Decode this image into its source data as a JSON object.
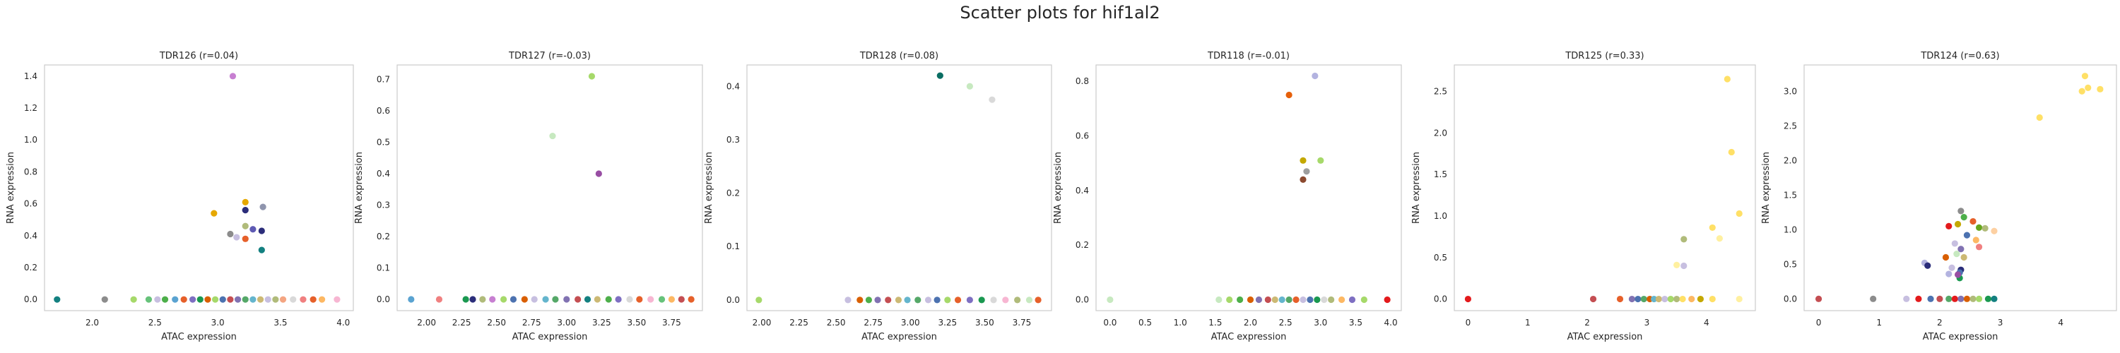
{
  "figure": {
    "suptitle": "Scatter plots for hif1al2"
  },
  "chart_data": [
    {
      "type": "scatter",
      "title": "TDR126 (r=0.04)",
      "xlabel": "ATAC expression",
      "ylabel": "RNA expression",
      "xlim": [
        1.62,
        4.08
      ],
      "ylim": [
        -0.07,
        1.47
      ],
      "xticks": [
        "2.0",
        "2.5",
        "3.0",
        "3.5",
        "4.0"
      ],
      "yticks": [
        "0.0",
        "0.2",
        "0.4",
        "0.6",
        "0.8",
        "1.0",
        "1.2",
        "1.4"
      ],
      "grid": false,
      "points": [
        {
          "x": 3.12,
          "y": 1.4,
          "c": "#c77fd1"
        },
        {
          "x": 3.22,
          "y": 0.61,
          "c": "#e6a800"
        },
        {
          "x": 3.36,
          "y": 0.58,
          "c": "#8f95ad"
        },
        {
          "x": 2.97,
          "y": 0.54,
          "c": "#e6a800"
        },
        {
          "x": 3.22,
          "y": 0.56,
          "c": "#2b2d7a"
        },
        {
          "x": 3.22,
          "y": 0.46,
          "c": "#b0bb7a"
        },
        {
          "x": 3.28,
          "y": 0.44,
          "c": "#5e5ab3"
        },
        {
          "x": 3.35,
          "y": 0.43,
          "c": "#2b2d7a"
        },
        {
          "x": 3.1,
          "y": 0.41,
          "c": "#8c8c8c"
        },
        {
          "x": 3.15,
          "y": 0.39,
          "c": "#c7bfe0"
        },
        {
          "x": 3.22,
          "y": 0.38,
          "c": "#e6602a"
        },
        {
          "x": 3.35,
          "y": 0.31,
          "c": "#138080"
        },
        {
          "x": 1.72,
          "y": 0.0,
          "c": "#138080"
        },
        {
          "x": 2.1,
          "y": 0.0,
          "c": "#8c8c8c"
        },
        {
          "x": 2.33,
          "y": 0.0,
          "c": "#a6d96a"
        },
        {
          "x": 2.45,
          "y": 0.0,
          "c": "#66c27a"
        },
        {
          "x": 2.52,
          "y": 0.0,
          "c": "#c7bfe0"
        },
        {
          "x": 2.58,
          "y": 0.0,
          "c": "#4daf4a"
        },
        {
          "x": 2.66,
          "y": 0.0,
          "c": "#5aa3d1"
        },
        {
          "x": 2.73,
          "y": 0.0,
          "c": "#e6602a"
        },
        {
          "x": 2.8,
          "y": 0.0,
          "c": "#7e6fc2"
        },
        {
          "x": 2.86,
          "y": 0.0,
          "c": "#1a9850"
        },
        {
          "x": 2.92,
          "y": 0.0,
          "c": "#d95f02"
        },
        {
          "x": 2.98,
          "y": 0.0,
          "c": "#a6d96a"
        },
        {
          "x": 3.04,
          "y": 0.0,
          "c": "#4c72b0"
        },
        {
          "x": 3.1,
          "y": 0.0,
          "c": "#c44e52"
        },
        {
          "x": 3.16,
          "y": 0.0,
          "c": "#8172b2"
        },
        {
          "x": 3.22,
          "y": 0.0,
          "c": "#55a868"
        },
        {
          "x": 3.28,
          "y": 0.0,
          "c": "#64b5cd"
        },
        {
          "x": 3.34,
          "y": 0.0,
          "c": "#ccb974"
        },
        {
          "x": 3.4,
          "y": 0.0,
          "c": "#c7bfe0"
        },
        {
          "x": 3.46,
          "y": 0.0,
          "c": "#b0bb7a"
        },
        {
          "x": 3.52,
          "y": 0.0,
          "c": "#f4a582"
        },
        {
          "x": 3.6,
          "y": 0.0,
          "c": "#d9d9d9"
        },
        {
          "x": 3.68,
          "y": 0.0,
          "c": "#f08080"
        },
        {
          "x": 3.76,
          "y": 0.0,
          "c": "#e6602a"
        },
        {
          "x": 3.83,
          "y": 0.0,
          "c": "#fdb863"
        },
        {
          "x": 3.95,
          "y": 0.0,
          "c": "#f7b6d2"
        }
      ]
    },
    {
      "type": "scatter",
      "title": "TDR127 (r=-0.03)",
      "xlabel": "ATAC expression",
      "ylabel": "RNA expression",
      "xlim": [
        1.79,
        3.97
      ],
      "ylim": [
        -0.036,
        0.746
      ],
      "xticks": [
        "2.00",
        "2.25",
        "2.50",
        "2.75",
        "3.00",
        "3.25",
        "3.50",
        "3.75"
      ],
      "yticks": [
        "0.0",
        "0.1",
        "0.2",
        "0.3",
        "0.4",
        "0.5",
        "0.6",
        "0.7"
      ],
      "grid": false,
      "points": [
        {
          "x": 3.18,
          "y": 0.71,
          "c": "#a6d96a"
        },
        {
          "x": 2.9,
          "y": 0.52,
          "c": "#c7e9c0"
        },
        {
          "x": 3.23,
          "y": 0.4,
          "c": "#984ea3"
        },
        {
          "x": 1.89,
          "y": 0.0,
          "c": "#5aa3d1"
        },
        {
          "x": 2.09,
          "y": 0.0,
          "c": "#f08080"
        },
        {
          "x": 2.28,
          "y": 0.0,
          "c": "#1a9850"
        },
        {
          "x": 2.33,
          "y": 0.0,
          "c": "#2b2d7a"
        },
        {
          "x": 2.4,
          "y": 0.0,
          "c": "#b0bb7a"
        },
        {
          "x": 2.47,
          "y": 0.0,
          "c": "#c77fd1"
        },
        {
          "x": 2.55,
          "y": 0.0,
          "c": "#a6d96a"
        },
        {
          "x": 2.62,
          "y": 0.0,
          "c": "#4c72b0"
        },
        {
          "x": 2.7,
          "y": 0.0,
          "c": "#d95f02"
        },
        {
          "x": 2.77,
          "y": 0.0,
          "c": "#c7bfe0"
        },
        {
          "x": 2.85,
          "y": 0.0,
          "c": "#64b5cd"
        },
        {
          "x": 2.92,
          "y": 0.0,
          "c": "#55a868"
        },
        {
          "x": 3.0,
          "y": 0.0,
          "c": "#8172b2"
        },
        {
          "x": 3.08,
          "y": 0.0,
          "c": "#c44e52"
        },
        {
          "x": 3.15,
          "y": 0.0,
          "c": "#138080"
        },
        {
          "x": 3.22,
          "y": 0.0,
          "c": "#ccb974"
        },
        {
          "x": 3.3,
          "y": 0.0,
          "c": "#4daf4a"
        },
        {
          "x": 3.37,
          "y": 0.0,
          "c": "#7e6fc2"
        },
        {
          "x": 3.45,
          "y": 0.0,
          "c": "#d9d9d9"
        },
        {
          "x": 3.52,
          "y": 0.0,
          "c": "#e6602a"
        },
        {
          "x": 3.6,
          "y": 0.0,
          "c": "#f7b6d2"
        },
        {
          "x": 3.68,
          "y": 0.0,
          "c": "#66c27a"
        },
        {
          "x": 3.75,
          "y": 0.0,
          "c": "#fdb863"
        },
        {
          "x": 3.82,
          "y": 0.0,
          "c": "#c44e52"
        },
        {
          "x": 3.89,
          "y": 0.0,
          "c": "#e6602a"
        }
      ]
    },
    {
      "type": "scatter",
      "title": "TDR128 (r=0.08)",
      "xlabel": "ATAC expression",
      "ylabel": "RNA expression",
      "xlim": [
        1.9,
        3.95
      ],
      "ylim": [
        -0.02,
        0.44
      ],
      "xticks": [
        "2.00",
        "2.25",
        "2.50",
        "2.75",
        "3.00",
        "3.25",
        "3.50",
        "3.75"
      ],
      "yticks": [
        "0.0",
        "0.1",
        "0.2",
        "0.3",
        "0.4"
      ],
      "grid": false,
      "points": [
        {
          "x": 3.2,
          "y": 0.42,
          "c": "#0b6e63"
        },
        {
          "x": 3.4,
          "y": 0.4,
          "c": "#c7e9c0"
        },
        {
          "x": 3.55,
          "y": 0.375,
          "c": "#d9d9d9"
        },
        {
          "x": 1.98,
          "y": 0.0,
          "c": "#a6d96a"
        },
        {
          "x": 2.58,
          "y": 0.0,
          "c": "#c7bfe0"
        },
        {
          "x": 2.66,
          "y": 0.0,
          "c": "#d95f02"
        },
        {
          "x": 2.72,
          "y": 0.0,
          "c": "#4daf4a"
        },
        {
          "x": 2.78,
          "y": 0.0,
          "c": "#8172b2"
        },
        {
          "x": 2.85,
          "y": 0.0,
          "c": "#c44e52"
        },
        {
          "x": 2.92,
          "y": 0.0,
          "c": "#ccb974"
        },
        {
          "x": 2.98,
          "y": 0.0,
          "c": "#64b5cd"
        },
        {
          "x": 3.05,
          "y": 0.0,
          "c": "#55a868"
        },
        {
          "x": 3.12,
          "y": 0.0,
          "c": "#c7bfe0"
        },
        {
          "x": 3.18,
          "y": 0.0,
          "c": "#4c72b0"
        },
        {
          "x": 3.25,
          "y": 0.0,
          "c": "#a6d96a"
        },
        {
          "x": 3.32,
          "y": 0.0,
          "c": "#e6602a"
        },
        {
          "x": 3.4,
          "y": 0.0,
          "c": "#7e6fc2"
        },
        {
          "x": 3.48,
          "y": 0.0,
          "c": "#1a9850"
        },
        {
          "x": 3.56,
          "y": 0.0,
          "c": "#d9d9d9"
        },
        {
          "x": 3.64,
          "y": 0.0,
          "c": "#f7b6d2"
        },
        {
          "x": 3.72,
          "y": 0.0,
          "c": "#b0bb7a"
        },
        {
          "x": 3.8,
          "y": 0.0,
          "c": "#c7e9c0"
        },
        {
          "x": 3.86,
          "y": 0.0,
          "c": "#e6602a"
        }
      ]
    },
    {
      "type": "scatter",
      "title": "TDR118 (r=-0.01)",
      "xlabel": "ATAC expression",
      "ylabel": "RNA expression",
      "xlim": [
        -0.2,
        4.15
      ],
      "ylim": [
        -0.04,
        0.86
      ],
      "xticks": [
        "0.0",
        "0.5",
        "1.0",
        "1.5",
        "2.0",
        "2.5",
        "3.0",
        "3.5",
        "4.0"
      ],
      "yticks": [
        "0.0",
        "0.2",
        "0.4",
        "0.6",
        "0.8"
      ],
      "grid": false,
      "points": [
        {
          "x": 2.92,
          "y": 0.82,
          "c": "#b3b3e0"
        },
        {
          "x": 2.55,
          "y": 0.75,
          "c": "#e6600a"
        },
        {
          "x": 2.75,
          "y": 0.51,
          "c": "#c4a800"
        },
        {
          "x": 3.0,
          "y": 0.51,
          "c": "#a6d96a"
        },
        {
          "x": 2.8,
          "y": 0.47,
          "c": "#9e9e9e"
        },
        {
          "x": 2.75,
          "y": 0.44,
          "c": "#8c4a2f"
        },
        {
          "x": 0.0,
          "y": 0.0,
          "c": "#c7e9c0"
        },
        {
          "x": 1.55,
          "y": 0.0,
          "c": "#c7e9c0"
        },
        {
          "x": 1.7,
          "y": 0.0,
          "c": "#a6d96a"
        },
        {
          "x": 1.85,
          "y": 0.0,
          "c": "#4daf4a"
        },
        {
          "x": 2.0,
          "y": 0.0,
          "c": "#d95f02"
        },
        {
          "x": 2.12,
          "y": 0.0,
          "c": "#8172b2"
        },
        {
          "x": 2.25,
          "y": 0.0,
          "c": "#c44e52"
        },
        {
          "x": 2.35,
          "y": 0.0,
          "c": "#ccb974"
        },
        {
          "x": 2.45,
          "y": 0.0,
          "c": "#64b5cd"
        },
        {
          "x": 2.55,
          "y": 0.0,
          "c": "#55a868"
        },
        {
          "x": 2.65,
          "y": 0.0,
          "c": "#e6602a"
        },
        {
          "x": 2.75,
          "y": 0.0,
          "c": "#c7bfe0"
        },
        {
          "x": 2.85,
          "y": 0.0,
          "c": "#4c72b0"
        },
        {
          "x": 2.95,
          "y": 0.0,
          "c": "#1a9850"
        },
        {
          "x": 3.05,
          "y": 0.0,
          "c": "#d9d9d9"
        },
        {
          "x": 3.15,
          "y": 0.0,
          "c": "#b0bb7a"
        },
        {
          "x": 3.3,
          "y": 0.0,
          "c": "#fdb863"
        },
        {
          "x": 3.45,
          "y": 0.0,
          "c": "#7e6fc2"
        },
        {
          "x": 3.62,
          "y": 0.0,
          "c": "#a6d96a"
        },
        {
          "x": 3.95,
          "y": 0.0,
          "c": "#e31a1c"
        }
      ]
    },
    {
      "type": "scatter",
      "title": "TDR125 (r=0.33)",
      "xlabel": "ATAC expression",
      "ylabel": "RNA expression",
      "xlim": [
        -0.23,
        4.82
      ],
      "ylim": [
        -0.14,
        2.82
      ],
      "xticks": [
        "0",
        "1",
        "2",
        "3",
        "4"
      ],
      "yticks": [
        "0.0",
        "0.5",
        "1.0",
        "1.5",
        "2.0",
        "2.5"
      ],
      "grid": false,
      "points": [
        {
          "x": 4.35,
          "y": 2.65,
          "c": "#ffe066"
        },
        {
          "x": 4.42,
          "y": 1.77,
          "c": "#ffe066"
        },
        {
          "x": 4.55,
          "y": 1.03,
          "c": "#ffe066"
        },
        {
          "x": 4.1,
          "y": 0.86,
          "c": "#ffe066"
        },
        {
          "x": 4.22,
          "y": 0.73,
          "c": "#fff0a0"
        },
        {
          "x": 3.62,
          "y": 0.72,
          "c": "#b0bb7a"
        },
        {
          "x": 3.5,
          "y": 0.41,
          "c": "#fff0a0"
        },
        {
          "x": 3.62,
          "y": 0.4,
          "c": "#c7bfe0"
        },
        {
          "x": 0.0,
          "y": 0.0,
          "c": "#e31a1c"
        },
        {
          "x": 2.1,
          "y": 0.0,
          "c": "#c44e52"
        },
        {
          "x": 2.55,
          "y": 0.0,
          "c": "#e6602a"
        },
        {
          "x": 2.75,
          "y": 0.0,
          "c": "#8172b2"
        },
        {
          "x": 2.85,
          "y": 0.0,
          "c": "#4c72b0"
        },
        {
          "x": 2.95,
          "y": 0.0,
          "c": "#55a868"
        },
        {
          "x": 3.05,
          "y": 0.0,
          "c": "#d95f02"
        },
        {
          "x": 3.12,
          "y": 0.0,
          "c": "#64b5cd"
        },
        {
          "x": 3.2,
          "y": 0.0,
          "c": "#ccb974"
        },
        {
          "x": 3.3,
          "y": 0.0,
          "c": "#c7bfe0"
        },
        {
          "x": 3.4,
          "y": 0.0,
          "c": "#a6d96a"
        },
        {
          "x": 3.5,
          "y": 0.0,
          "c": "#b0bb7a"
        },
        {
          "x": 3.6,
          "y": 0.0,
          "c": "#ffe066"
        },
        {
          "x": 3.75,
          "y": 0.0,
          "c": "#fdb863"
        },
        {
          "x": 3.9,
          "y": 0.0,
          "c": "#c4a800"
        },
        {
          "x": 4.1,
          "y": 0.0,
          "c": "#ffe066"
        },
        {
          "x": 4.55,
          "y": 0.0,
          "c": "#fff0a0"
        }
      ]
    },
    {
      "type": "scatter",
      "title": "TDR124 (r=0.63)",
      "xlabel": "ATAC expression",
      "ylabel": "RNA expression",
      "xlim": [
        -0.24,
        4.92
      ],
      "ylim": [
        -0.17,
        3.38
      ],
      "xticks": [
        "0",
        "1",
        "2",
        "3",
        "4"
      ],
      "yticks": [
        "0.0",
        "0.5",
        "1.0",
        "1.5",
        "2.0",
        "2.5",
        "3.0"
      ],
      "grid": false,
      "points": [
        {
          "x": 4.4,
          "y": 3.22,
          "c": "#ffe066"
        },
        {
          "x": 4.45,
          "y": 3.05,
          "c": "#ffe066"
        },
        {
          "x": 4.35,
          "y": 3.0,
          "c": "#ffe066"
        },
        {
          "x": 4.65,
          "y": 3.03,
          "c": "#ffe066"
        },
        {
          "x": 3.65,
          "y": 2.62,
          "c": "#ffe066"
        },
        {
          "x": 2.35,
          "y": 1.27,
          "c": "#8c8c8c"
        },
        {
          "x": 2.4,
          "y": 1.18,
          "c": "#4daf4a"
        },
        {
          "x": 2.55,
          "y": 1.12,
          "c": "#e6602a"
        },
        {
          "x": 2.15,
          "y": 1.05,
          "c": "#e31a1c"
        },
        {
          "x": 2.3,
          "y": 1.08,
          "c": "#c4a800"
        },
        {
          "x": 2.65,
          "y": 1.03,
          "c": "#66a61e"
        },
        {
          "x": 2.75,
          "y": 1.02,
          "c": "#b0bb7a"
        },
        {
          "x": 2.9,
          "y": 0.98,
          "c": "#fdd0a2"
        },
        {
          "x": 2.45,
          "y": 0.92,
          "c": "#4c72b0"
        },
        {
          "x": 2.6,
          "y": 0.85,
          "c": "#fdb863"
        },
        {
          "x": 2.25,
          "y": 0.8,
          "c": "#c7bfe0"
        },
        {
          "x": 2.35,
          "y": 0.72,
          "c": "#8172b2"
        },
        {
          "x": 2.65,
          "y": 0.75,
          "c": "#f08080"
        },
        {
          "x": 2.28,
          "y": 0.65,
          "c": "#c7e9c0"
        },
        {
          "x": 2.1,
          "y": 0.6,
          "c": "#d95f02"
        },
        {
          "x": 2.4,
          "y": 0.6,
          "c": "#ccb974"
        },
        {
          "x": 1.75,
          "y": 0.52,
          "c": "#b3b3e0"
        },
        {
          "x": 1.8,
          "y": 0.48,
          "c": "#2b2d7a"
        },
        {
          "x": 2.2,
          "y": 0.45,
          "c": "#c7bfe0"
        },
        {
          "x": 2.35,
          "y": 0.42,
          "c": "#2b2d7a"
        },
        {
          "x": 2.33,
          "y": 0.38,
          "c": "#4c72b0"
        },
        {
          "x": 2.15,
          "y": 0.36,
          "c": "#b3b3e0"
        },
        {
          "x": 2.33,
          "y": 0.3,
          "c": "#1a9850"
        },
        {
          "x": 2.3,
          "y": 0.35,
          "c": "#984ea3"
        },
        {
          "x": 0.0,
          "y": 0.0,
          "c": "#c44e52"
        },
        {
          "x": 0.9,
          "y": 0.0,
          "c": "#8c8c8c"
        },
        {
          "x": 1.45,
          "y": 0.0,
          "c": "#c7bfe0"
        },
        {
          "x": 1.65,
          "y": 0.0,
          "c": "#e31a1c"
        },
        {
          "x": 1.85,
          "y": 0.0,
          "c": "#4c72b0"
        },
        {
          "x": 2.0,
          "y": 0.0,
          "c": "#c44e52"
        },
        {
          "x": 2.15,
          "y": 0.0,
          "c": "#55a868"
        },
        {
          "x": 2.25,
          "y": 0.0,
          "c": "#e31a1c"
        },
        {
          "x": 2.35,
          "y": 0.0,
          "c": "#8172b2"
        },
        {
          "x": 2.45,
          "y": 0.0,
          "c": "#d95f02"
        },
        {
          "x": 2.55,
          "y": 0.0,
          "c": "#b0bb7a"
        },
        {
          "x": 2.65,
          "y": 0.0,
          "c": "#a6d96a"
        },
        {
          "x": 2.8,
          "y": 0.0,
          "c": "#1a9850"
        },
        {
          "x": 2.9,
          "y": 0.0,
          "c": "#138080"
        }
      ]
    }
  ]
}
